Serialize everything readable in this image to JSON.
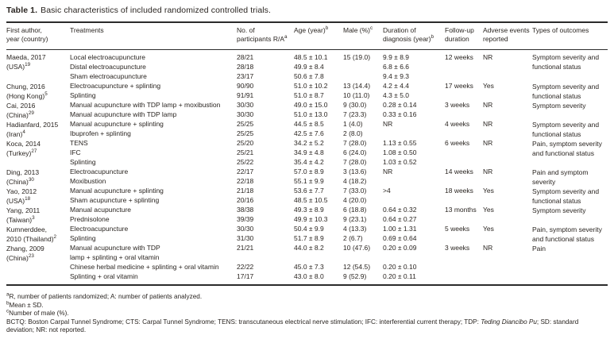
{
  "title": {
    "label": "Table 1.",
    "text": "Basic characteristics of included randomized controlled trials."
  },
  "table": {
    "columns": [
      {
        "label": "First author,\nyear (country)",
        "sup": ""
      },
      {
        "label": "Treatments",
        "sup": ""
      },
      {
        "label": "No. of\nparticipants R/A",
        "sup": "a"
      },
      {
        "label": "Age (year)",
        "sup": "b"
      },
      {
        "label": "Male (%)",
        "sup": "c"
      },
      {
        "label": "Duration of\ndiagnosis (year)",
        "sup": "b"
      },
      {
        "label": "Follow-up\nduration",
        "sup": ""
      },
      {
        "label": "Adverse events\nreported",
        "sup": ""
      },
      {
        "label": "Types of outcomes",
        "sup": ""
      }
    ],
    "studies": [
      {
        "author": "Maeda, 2017\n(USA)",
        "ref": "19",
        "rows": [
          {
            "treatment": "Local electroacupuncture",
            "participants": "28/21",
            "age": "48.5 ± 10.1",
            "male": "15 (19.0)",
            "duration": "9.9 ± 8.9",
            "followup": "12 weeks",
            "adverse": "NR",
            "outcomes": "Symptom severity and\nfunctional status"
          },
          {
            "treatment": "Distal electroacupuncture",
            "participants": "28/18",
            "age": "49.9 ± 8.4",
            "male": "",
            "duration": "6.8 ± 6.6",
            "followup": "",
            "adverse": "",
            "outcomes": ""
          },
          {
            "treatment": "Sham electroacupuncture",
            "participants": "23/17",
            "age": "50.6 ± 7.8",
            "male": "",
            "duration": "9.4 ± 9.3",
            "followup": "",
            "adverse": "",
            "outcomes": ""
          }
        ]
      },
      {
        "author": "Chung, 2016\n(Hong Kong)",
        "ref": "5",
        "rows": [
          {
            "treatment": "Electroacupuncture + splinting",
            "participants": "90/90",
            "age": "51.0 ± 10.2",
            "male": "13 (14.4)",
            "duration": "4.2 ± 4.4",
            "followup": "17 weeks",
            "adverse": "Yes",
            "outcomes": "Symptom severity and\nfunctional status"
          },
          {
            "treatment": "Splinting",
            "participants": "91/91",
            "age": "51.0 ± 8.7",
            "male": "10 (11.0)",
            "duration": "4.3 ± 5.0",
            "followup": "",
            "adverse": "",
            "outcomes": ""
          }
        ]
      },
      {
        "author": "Cai, 2016\n(China)",
        "ref": "29",
        "rows": [
          {
            "treatment": "Manual acupuncture with TDP lamp + moxibustion",
            "participants": "30/30",
            "age": "49.0 ± 15.0",
            "male": "9 (30.0)",
            "duration": "0.28 ± 0.14",
            "followup": "3 weeks",
            "adverse": "NR",
            "outcomes": "Symptom severity"
          },
          {
            "treatment": "Manual acupuncture with TDP lamp",
            "participants": "30/30",
            "age": "51.0 ± 13.0",
            "male": "7 (23.3)",
            "duration": "0.33 ± 0.16",
            "followup": "",
            "adverse": "",
            "outcomes": ""
          }
        ]
      },
      {
        "author": "Hadianfard, 2015\n(Iran)",
        "ref": "4",
        "rows": [
          {
            "treatment": "Manual acupuncture + splinting",
            "participants": "25/25",
            "age": "44.5 ± 8.5",
            "male": "1 (4.0)",
            "duration": "NR",
            "followup": "4 weeks",
            "adverse": "NR",
            "outcomes": "Symptom severity and\nfunctional status"
          },
          {
            "treatment": "Ibuprofen + splinting",
            "participants": "25/25",
            "age": "42.5 ± 7.6",
            "male": "2 (8.0)",
            "duration": "",
            "followup": "",
            "adverse": "",
            "outcomes": ""
          }
        ]
      },
      {
        "author": "Koca, 2014\n(Turkey)",
        "ref": "27",
        "rows": [
          {
            "treatment": "TENS",
            "participants": "25/20",
            "age": "34.2 ± 5.2",
            "male": "7 (28.0)",
            "duration": "1.13 ± 0.55",
            "followup": "6 weeks",
            "adverse": "NR",
            "outcomes": "Pain, symptom severity\nand functional status"
          },
          {
            "treatment": "IFC",
            "participants": "25/21",
            "age": "34.9 ± 4.8",
            "male": "6 (24.0)",
            "duration": "1.08 ± 0.50",
            "followup": "",
            "adverse": "",
            "outcomes": ""
          },
          {
            "treatment": "Splinting",
            "participants": "25/22",
            "age": "35.4 ± 4.2",
            "male": "7 (28.0)",
            "duration": "1.03 ± 0.52",
            "followup": "",
            "adverse": "",
            "outcomes": ""
          }
        ]
      },
      {
        "author": "Ding, 2013\n(China)",
        "ref": "30",
        "rows": [
          {
            "treatment": "Electroacupuncture",
            "participants": "22/17",
            "age": "57.0 ± 8.9",
            "male": "3 (13.6)",
            "duration": "NR",
            "followup": "14 weeks",
            "adverse": "NR",
            "outcomes": "Pain and symptom\nseverity"
          },
          {
            "treatment": "Moxibustion",
            "participants": "22/18",
            "age": "55.1 ± 9.9",
            "male": "4 (18.2)",
            "duration": "",
            "followup": "",
            "adverse": "",
            "outcomes": ""
          }
        ]
      },
      {
        "author": "Yao, 2012\n(USA)",
        "ref": "18",
        "rows": [
          {
            "treatment": "Manual acupuncture + splinting",
            "participants": "21/18",
            "age": "53.6 ± 7.7",
            "male": "7 (33.0)",
            "duration": ">4",
            "followup": "18 weeks",
            "adverse": "Yes",
            "outcomes": "Symptom severity and\nfunctional status"
          },
          {
            "treatment": "Sham acupuncture + splinting",
            "participants": "20/16",
            "age": "48.5 ± 10.5",
            "male": "4 (20.0)",
            "duration": "",
            "followup": "",
            "adverse": "",
            "outcomes": ""
          }
        ]
      },
      {
        "author": "Yang, 2011\n(Taiwan)",
        "ref": "3",
        "rows": [
          {
            "treatment": "Manual acupuncture",
            "participants": "38/38",
            "age": "49.3 ± 8.9",
            "male": "6 (18.8)",
            "duration": "0.64 ± 0.32",
            "followup": "13 months",
            "adverse": "Yes",
            "outcomes": "Symptom severity"
          },
          {
            "treatment": "Prednisolone",
            "participants": "39/39",
            "age": "49.9 ± 10.3",
            "male": "9 (23.1)",
            "duration": "0.64 ± 0.27",
            "followup": "",
            "adverse": "",
            "outcomes": ""
          }
        ]
      },
      {
        "author": "Kumnerddee,\n2010 (Thailand)",
        "ref": "2",
        "rows": [
          {
            "treatment": "Electroacupuncture",
            "participants": "30/30",
            "age": "50.4 ± 9.9",
            "male": "4 (13.3)",
            "duration": "1.00 ± 1.31",
            "followup": "5 weeks",
            "adverse": "Yes",
            "outcomes": "Pain, symptom severity\nand functional status"
          },
          {
            "treatment": "Splinting",
            "participants": "31/30",
            "age": "51.7 ± 8.9",
            "male": "2 (6.7)",
            "duration": "0.69 ± 0.64",
            "followup": "",
            "adverse": "",
            "outcomes": ""
          }
        ]
      },
      {
        "author": "Zhang, 2009\n(China)",
        "ref": "23",
        "rows": [
          {
            "treatment": "Manual acupuncture with TDP\nlamp + splinting + oral vitamin",
            "participants": "21/21",
            "age": "44.0 ± 8.2",
            "male": "10 (47.6)",
            "duration": "0.20 ± 0.09",
            "followup": "3 weeks",
            "adverse": "NR",
            "outcomes": "Pain"
          },
          {
            "treatment": "Chinese herbal medicine + splinting + oral vitamin",
            "participants": "22/22",
            "age": "45.0 ± 7.3",
            "male": "12 (54.5)",
            "duration": "0.20 ± 0.10",
            "followup": "",
            "adverse": "",
            "outcomes": ""
          },
          {
            "treatment": "Splinting + oral vitamin",
            "participants": "17/17",
            "age": "43.0 ± 8.0",
            "male": "9 (52.9)",
            "duration": "0.20 ± 0.11",
            "followup": "",
            "adverse": "",
            "outcomes": ""
          }
        ]
      }
    ]
  },
  "footnotes": [
    {
      "sup": "a",
      "text": "R, number of patients randomized; A: number of patients analyzed."
    },
    {
      "sup": "b",
      "text": "Mean ± SD."
    },
    {
      "sup": "c",
      "text": "Number of male (%)."
    }
  ],
  "abbrev_note": {
    "part1": "BCTQ: Boston Carpal Tunnel Syndrome; CTS: Carpal Tunnel Syndrome; TENS: transcutaneous electrical nerve stimulation; IFC: interferential current therapy; TDP: ",
    "italic": "Teding Diancibo Pu",
    "part2": "; SD: standard deviation; NR: not reported."
  }
}
